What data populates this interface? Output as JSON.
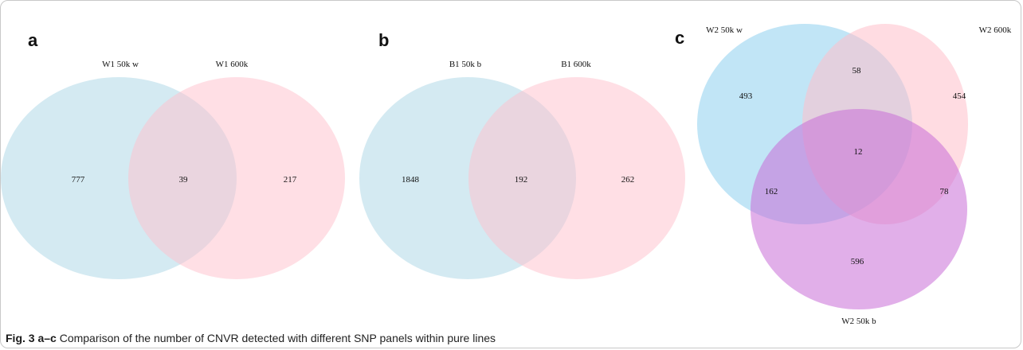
{
  "colors": {
    "blue": "#a9d6e5",
    "pink": "#ffc0cb",
    "violet": "#c86dd7",
    "blue_c": "#8ecfee"
  },
  "panels": [
    {
      "letter": "a",
      "sets": [
        "W1 50k w",
        "W1 600k"
      ],
      "counts": {
        "only_left": "777",
        "both": "39",
        "only_right": "217"
      }
    },
    {
      "letter": "b",
      "sets": [
        "B1 50k b",
        "B1 600k"
      ],
      "counts": {
        "only_left": "1848",
        "both": "192",
        "only_right": "262"
      }
    },
    {
      "letter": "c",
      "sets": [
        "W2 50k w",
        "W2 600k",
        "W2 50k b"
      ],
      "counts": {
        "only_w": "493",
        "w_600": "58",
        "only_600": "454",
        "all": "12",
        "w_b": "162",
        "600_b": "78",
        "only_b": "596"
      }
    }
  ],
  "caption": {
    "fig": "Fig. 3",
    "range": "a–c",
    "text": " Comparison of the number of CNVR detected with different SNP panels within pure lines"
  }
}
